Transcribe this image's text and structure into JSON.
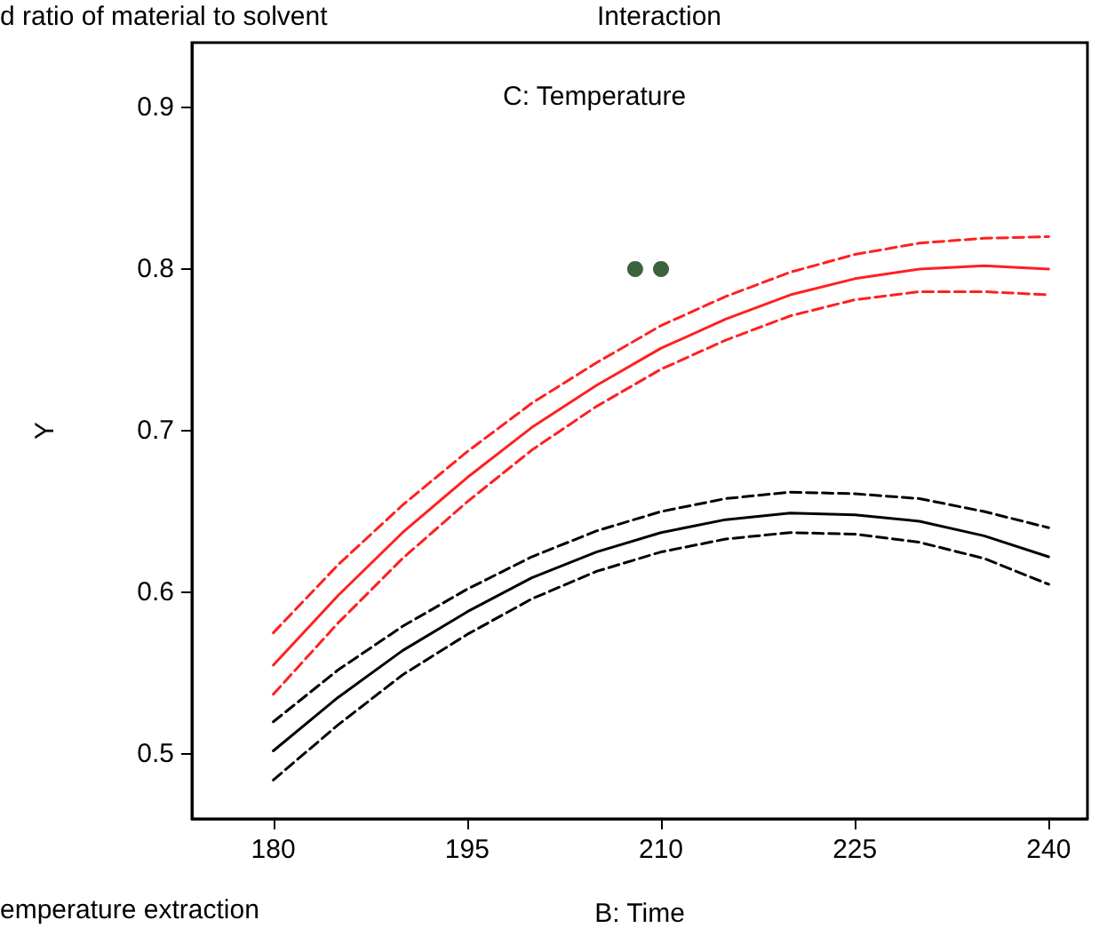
{
  "chart_data": {
    "type": "line",
    "title": "Interaction",
    "xlabel": "B: Time",
    "ylabel": "Y",
    "annotations": [
      "d ratio of material to solvent",
      "C: Temperature",
      "emperature extraction"
    ],
    "x": [
      180,
      185,
      190,
      195,
      200,
      205,
      210,
      215,
      220,
      225,
      230,
      235,
      240
    ],
    "series": [
      {
        "color": "#ff2020",
        "line_style": "solid",
        "values": [
          0.555,
          0.598,
          0.637,
          0.671,
          0.702,
          0.728,
          0.751,
          0.769,
          0.784,
          0.794,
          0.8,
          0.802,
          0.8
        ]
      },
      {
        "color": "#ff2020",
        "line_style": "dashed",
        "values": [
          0.537,
          0.581,
          0.621,
          0.656,
          0.688,
          0.715,
          0.738,
          0.756,
          0.771,
          0.781,
          0.786,
          0.786,
          0.784
        ]
      },
      {
        "color": "#ff2020",
        "line_style": "dashed",
        "values": [
          0.575,
          0.617,
          0.654,
          0.687,
          0.717,
          0.742,
          0.765,
          0.783,
          0.798,
          0.809,
          0.816,
          0.819,
          0.82
        ]
      },
      {
        "color": "#000000",
        "line_style": "solid",
        "values": [
          0.502,
          0.535,
          0.564,
          0.588,
          0.609,
          0.625,
          0.637,
          0.645,
          0.649,
          0.648,
          0.644,
          0.635,
          0.622
        ]
      },
      {
        "color": "#000000",
        "line_style": "dashed",
        "values": [
          0.484,
          0.518,
          0.549,
          0.574,
          0.596,
          0.613,
          0.625,
          0.633,
          0.637,
          0.636,
          0.631,
          0.621,
          0.605
        ]
      },
      {
        "color": "#000000",
        "line_style": "dashed",
        "values": [
          0.52,
          0.552,
          0.579,
          0.602,
          0.622,
          0.638,
          0.65,
          0.658,
          0.662,
          0.661,
          0.658,
          0.65,
          0.64
        ]
      },
      {
        "type": "scatter",
        "color": "#0b3d0b",
        "marker": "circle",
        "x": [
          208,
          210
        ],
        "values": [
          0.8,
          0.8
        ]
      }
    ],
    "xlim": [
      173.7,
      243
    ],
    "xticks": [
      180,
      195,
      210,
      225,
      240
    ],
    "ylim": [
      0.46,
      0.94
    ],
    "yticks": [
      0.5,
      0.6,
      0.7,
      0.8,
      0.9
    ],
    "grid": false,
    "marker": "none"
  }
}
